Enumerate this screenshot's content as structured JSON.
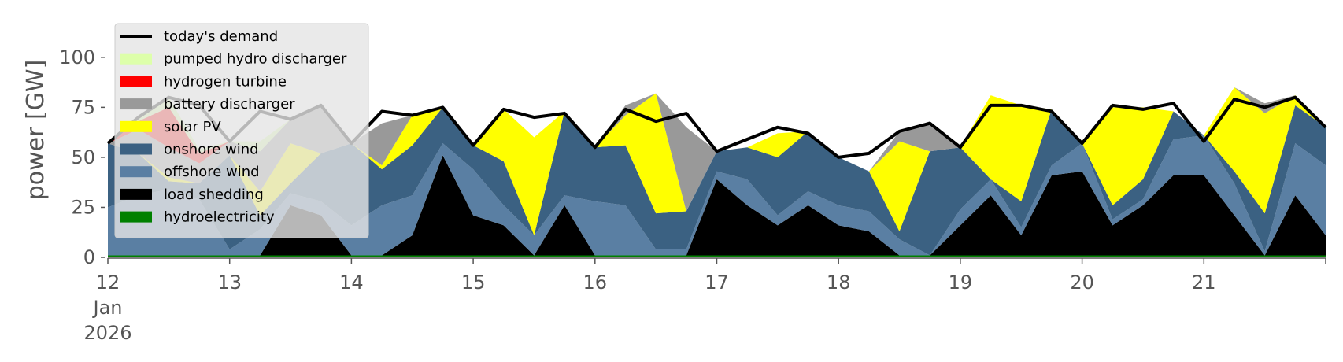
{
  "chart_data": {
    "type": "area",
    "stacked": true,
    "title": "",
    "xlabel": "",
    "ylabel": "power [GW]",
    "xlim": [
      12,
      22
    ],
    "ylim": [
      0,
      120
    ],
    "yticks": [
      0,
      25,
      50,
      75,
      100
    ],
    "yticklabels": [
      "0",
      "25",
      "50",
      "75",
      "100"
    ],
    "xticks": [
      12,
      13,
      14,
      15,
      16,
      17,
      18,
      19,
      20,
      21
    ],
    "xticklabels": [
      "12",
      "13",
      "14",
      "15",
      "16",
      "17",
      "18",
      "19",
      "20",
      "21"
    ],
    "xtick_extra_lines": [
      "Jan",
      "2026"
    ],
    "grid": false,
    "legend_position": "top-left",
    "legend": [
      {
        "name": "today's demand",
        "kind": "line"
      },
      {
        "name": "pumped hydro discharger",
        "kind": "patch"
      },
      {
        "name": "hydrogen turbine",
        "kind": "patch"
      },
      {
        "name": "battery discharger",
        "kind": "patch"
      },
      {
        "name": "solar PV",
        "kind": "patch"
      },
      {
        "name": "onshore wind",
        "kind": "patch"
      },
      {
        "name": "offshore wind",
        "kind": "patch"
      },
      {
        "name": "load shedding",
        "kind": "patch"
      },
      {
        "name": "hydroelectricity",
        "kind": "patch"
      }
    ],
    "colors": {
      "hydroelectricity": "#008000",
      "load shedding": "#000000",
      "offshore wind": "#5a7fa3",
      "onshore wind": "#3b6182",
      "solar PV": "#ffff00",
      "battery discharger": "#999999",
      "hydrogen turbine": "#ff0000",
      "pumped hydro discharger": "#ddffaa",
      "today's demand": "#000000",
      "legend_bg": "#e5e5e5"
    },
    "x": [
      12.0,
      12.25,
      12.5,
      12.75,
      13.0,
      13.25,
      13.5,
      13.75,
      14.0,
      14.25,
      14.5,
      14.75,
      15.0,
      15.25,
      15.5,
      15.75,
      16.0,
      16.25,
      16.5,
      16.75,
      17.0,
      17.25,
      17.5,
      17.75,
      18.0,
      18.25,
      18.5,
      18.75,
      19.0,
      19.25,
      19.5,
      19.75,
      20.0,
      20.25,
      20.5,
      20.75,
      21.0,
      21.25,
      21.5,
      21.75,
      22.0
    ],
    "demand": [
      57,
      70,
      80,
      76,
      58,
      73,
      69,
      76,
      57,
      73,
      71,
      75,
      56,
      74,
      70,
      72,
      55,
      74,
      68,
      72,
      53,
      59,
      65,
      62,
      50,
      52,
      63,
      67,
      55,
      76,
      76,
      73,
      57,
      76,
      74,
      77,
      58,
      79,
      75,
      80,
      65
    ],
    "series": [
      {
        "name": "hydroelectricity",
        "values": [
          1,
          1,
          1,
          1,
          1,
          1,
          1,
          1,
          1,
          1,
          1,
          1,
          1,
          1,
          1,
          1,
          1,
          1,
          1,
          1,
          1,
          1,
          1,
          1,
          1,
          1,
          1,
          1,
          1,
          1,
          1,
          1,
          1,
          1,
          1,
          1,
          1,
          1,
          1,
          1,
          1
        ]
      },
      {
        "name": "load shedding",
        "values": [
          0,
          0,
          0,
          0,
          0,
          0,
          25,
          20,
          0,
          0,
          10,
          50,
          20,
          15,
          0,
          25,
          0,
          0,
          0,
          0,
          38,
          25,
          15,
          25,
          15,
          12,
          0,
          0,
          15,
          30,
          10,
          40,
          42,
          15,
          25,
          40,
          40,
          20,
          0,
          30,
          10
        ]
      },
      {
        "name": "offshore wind",
        "values": [
          24,
          30,
          33,
          28,
          3,
          13,
          6,
          7,
          15,
          25,
          20,
          6,
          23,
          10,
          10,
          5,
          27,
          25,
          3,
          3,
          4,
          13,
          5,
          7,
          10,
          10,
          8,
          0,
          8,
          8,
          4,
          5,
          14,
          3,
          3,
          18,
          20,
          16,
          2,
          26,
          35
        ]
      },
      {
        "name": "onshore wind",
        "values": [
          32,
          21,
          4,
          8,
          47,
          7,
          5,
          24,
          41,
          18,
          25,
          18,
          12,
          22,
          0,
          42,
          27,
          30,
          18,
          19,
          10,
          16,
          29,
          30,
          24,
          20,
          4,
          52,
          31,
          0,
          13,
          28,
          0,
          7,
          10,
          14,
          0,
          6,
          19,
          19,
          19
        ]
      },
      {
        "name": "solar PV",
        "values": [
          0,
          0,
          2,
          0,
          0,
          12,
          20,
          0,
          0,
          2,
          15,
          0,
          0,
          26,
          49,
          0,
          0,
          15,
          60,
          0,
          0,
          0,
          12,
          0,
          0,
          0,
          45,
          0,
          0,
          42,
          48,
          0,
          0,
          49,
          36,
          0,
          0,
          42,
          50,
          5,
          0
        ]
      },
      {
        "name": "battery discharger",
        "values": [
          0,
          12,
          15,
          10,
          7,
          20,
          12,
          24,
          0,
          21,
          0,
          0,
          0,
          0,
          0,
          0,
          0,
          5,
          0,
          42,
          0,
          0,
          0,
          0,
          0,
          0,
          5,
          15,
          0,
          0,
          0,
          0,
          0,
          0,
          0,
          0,
          0,
          0,
          5,
          0,
          0
        ]
      },
      {
        "name": "hydrogen turbine",
        "values": [
          0,
          4,
          20,
          5,
          0,
          0,
          0,
          0,
          0,
          0,
          0,
          0,
          0,
          0,
          0,
          0,
          0,
          0,
          0,
          0,
          0,
          0,
          0,
          0,
          0,
          0,
          0,
          0,
          0,
          0,
          0,
          0,
          0,
          0,
          0,
          0,
          0,
          0,
          0,
          0,
          0
        ]
      },
      {
        "name": "pumped hydro discharger",
        "values": [
          0,
          2,
          5,
          2,
          0,
          5,
          0,
          0,
          0,
          0,
          0,
          0,
          0,
          0,
          0,
          0,
          0,
          0,
          0,
          0,
          0,
          0,
          0,
          0,
          0,
          0,
          0,
          0,
          0,
          0,
          0,
          0,
          0,
          0,
          0,
          0,
          0,
          0,
          0,
          0,
          0
        ]
      }
    ]
  }
}
